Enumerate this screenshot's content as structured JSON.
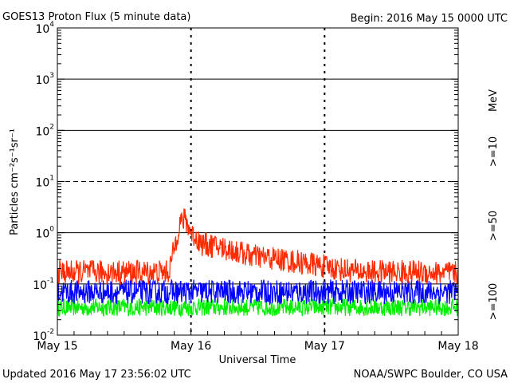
{
  "header": {
    "title": "GOES13 Proton Flux (5 minute data)",
    "begin": "Begin: 2016 May 15 0000 UTC"
  },
  "footer": {
    "updated": "Updated 2016 May 17 23:56:02 UTC",
    "credit": "NOAA/SWPC Boulder, CO USA"
  },
  "chart_data": {
    "type": "line",
    "title": "GOES13 Proton Flux (5 minute data)",
    "xlabel": "Universal Time",
    "ylabel": "Particles cm⁻²s⁻¹sr⁻¹",
    "yscale": "log",
    "ylim": [
      0.01,
      10000
    ],
    "xlim_hours": [
      0,
      72
    ],
    "x_tick_labels": [
      "May 15",
      "May 16",
      "May 17",
      "May 18"
    ],
    "y_tick_labels": [
      {
        "base": "10",
        "exp": "-2"
      },
      {
        "base": "10",
        "exp": "-1"
      },
      {
        "base": "10",
        "exp": "0"
      },
      {
        "base": "10",
        "exp": "1"
      },
      {
        "base": "10",
        "exp": "2"
      },
      {
        "base": "10",
        "exp": "3"
      },
      {
        "base": "10",
        "exp": "4"
      }
    ],
    "y_tick_values": [
      0.01,
      0.1,
      1,
      10,
      100,
      1000,
      10000
    ],
    "gridlines": [
      {
        "value": 10000,
        "style": "solid"
      },
      {
        "value": 1000,
        "style": "solid"
      },
      {
        "value": 100,
        "style": "solid"
      },
      {
        "value": 10,
        "style": "dashed"
      },
      {
        "value": 1,
        "style": "solid"
      },
      {
        "value": 0.1,
        "style": "solid"
      }
    ],
    "energy_unit": "MeV",
    "series": [
      {
        "name": ">=10",
        "color": "#ff2a00",
        "hours": [
          0,
          12,
          20,
          21,
          22,
          23,
          24,
          26,
          30,
          35,
          40,
          45,
          50,
          55,
          60,
          65,
          72
        ],
        "values": [
          0.17,
          0.17,
          0.17,
          0.5,
          1.6,
          1.8,
          1.0,
          0.6,
          0.5,
          0.35,
          0.3,
          0.25,
          0.2,
          0.17,
          0.17,
          0.17,
          0.16
        ]
      },
      {
        "name": ">=50",
        "color": "#0000ff",
        "hours": [
          0,
          72
        ],
        "values": [
          0.07,
          0.07
        ]
      },
      {
        "name": ">=100",
        "color": "#00ee00",
        "hours": [
          0,
          72
        ],
        "values": [
          0.035,
          0.035
        ]
      }
    ]
  }
}
